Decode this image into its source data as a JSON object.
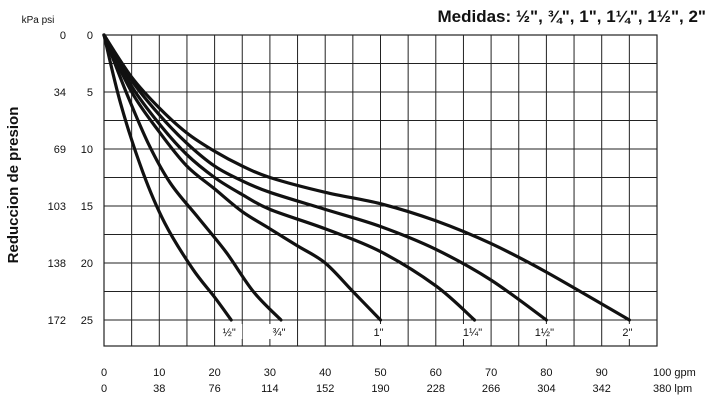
{
  "chart_data": {
    "type": "line",
    "title": "Medidas: ½\", ¾\", 1\", 1¼\", 1½\", 2\"",
    "ylabel": "Reduccion de presion",
    "y_units_label": "kPa psi",
    "x_primary_unit": "gpm",
    "x_secondary_unit": "lpm",
    "xlim": [
      0,
      100
    ],
    "ylim": [
      0,
      25
    ],
    "y_reversed": true,
    "grid": true,
    "x_ticks_gpm": [
      "0",
      "10",
      "20",
      "30",
      "40",
      "50",
      "60",
      "70",
      "80",
      "90",
      "100 gpm"
    ],
    "x_ticks_lpm": [
      "0",
      "38",
      "76",
      "114",
      "152",
      "190",
      "228",
      "266",
      "304",
      "342",
      "380 lpm"
    ],
    "y_ticks_psi": [
      "0",
      "5",
      "10",
      "15",
      "20",
      "25"
    ],
    "y_ticks_kpa": [
      "0",
      "34",
      "69",
      "103",
      "138",
      "172"
    ],
    "series": [
      {
        "name": "½\"",
        "x": [
          0,
          3,
          7,
          11,
          16,
          20,
          23
        ],
        "y": [
          0,
          6,
          12,
          16.5,
          20.5,
          23,
          25
        ]
      },
      {
        "name": "¾\"",
        "x": [
          0,
          4,
          8,
          12,
          17,
          22,
          27,
          32
        ],
        "y": [
          0,
          5,
          9.5,
          13,
          16,
          19,
          22.5,
          25
        ]
      },
      {
        "name": "1\"",
        "x": [
          0,
          5,
          10,
          15,
          20,
          25,
          30,
          35,
          40,
          45,
          50
        ],
        "y": [
          0,
          5,
          8.5,
          11.5,
          13.5,
          15.5,
          17,
          18.5,
          20,
          22.5,
          25
        ]
      },
      {
        "name": "1¼\"",
        "x": [
          0,
          5,
          10,
          15,
          20,
          25,
          30,
          40,
          50,
          60,
          67
        ],
        "y": [
          0,
          4.5,
          7.8,
          10.5,
          12.5,
          14,
          15.3,
          17,
          19,
          22,
          25
        ]
      },
      {
        "name": "1½\"",
        "x": [
          0,
          5,
          10,
          15,
          20,
          25,
          30,
          40,
          50,
          60,
          70,
          80
        ],
        "y": [
          0,
          4,
          7,
          9.5,
          11.5,
          12.8,
          13.8,
          15.3,
          16.8,
          18.8,
          21.5,
          25
        ]
      },
      {
        "name": "2\"",
        "x": [
          0,
          5,
          10,
          15,
          20,
          25,
          30,
          40,
          50,
          60,
          70,
          80,
          95
        ],
        "y": [
          0,
          3.7,
          6.4,
          8.6,
          10.2,
          11.5,
          12.5,
          13.8,
          14.8,
          16.3,
          18.3,
          20.8,
          25
        ]
      }
    ]
  }
}
